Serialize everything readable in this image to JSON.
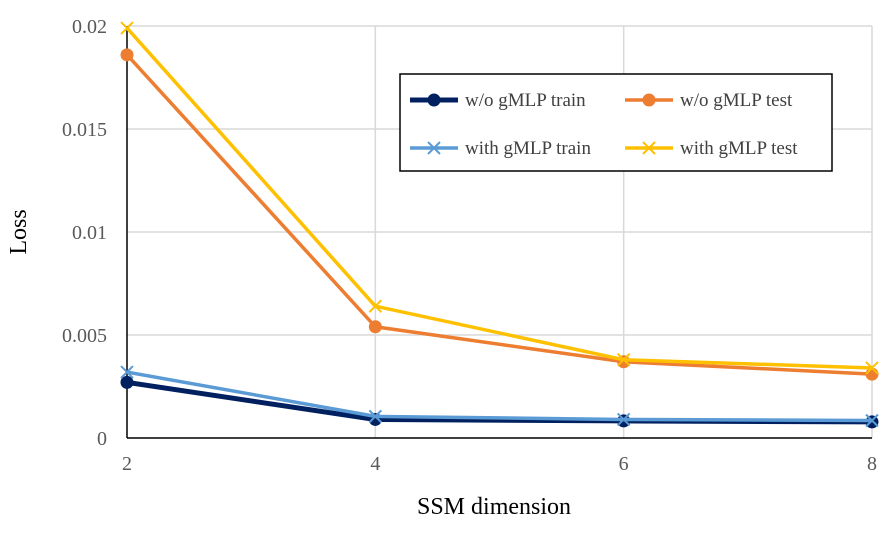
{
  "chart_data": {
    "type": "line",
    "title": "",
    "xlabel": "SSM dimension",
    "ylabel": "Loss",
    "x": [
      2,
      4,
      6,
      8
    ],
    "xlim": [
      2,
      8
    ],
    "ylim": [
      0,
      0.02
    ],
    "xticks": [
      "2",
      "4",
      "6",
      "8"
    ],
    "yticks": [
      "0",
      "0.005",
      "0.01",
      "0.015",
      "0.02"
    ],
    "grid": true,
    "legend_position": "top-right",
    "series": [
      {
        "name": "w/o gMLP train",
        "values": [
          0.0027,
          0.0009,
          0.00083,
          0.00078
        ],
        "color": "#002060",
        "marker": "circle"
      },
      {
        "name": "w/o gMLP test",
        "values": [
          0.0186,
          0.0054,
          0.0037,
          0.0031
        ],
        "color": "#ED7D31",
        "marker": "circle"
      },
      {
        "name": "with gMLP train",
        "values": [
          0.0032,
          0.00105,
          0.0009,
          0.00085
        ],
        "color": "#5B9BD5",
        "marker": "x"
      },
      {
        "name": "with gMLP test",
        "values": [
          0.0199,
          0.0064,
          0.0038,
          0.0034
        ],
        "color": "#FFC000",
        "marker": "x"
      }
    ]
  }
}
